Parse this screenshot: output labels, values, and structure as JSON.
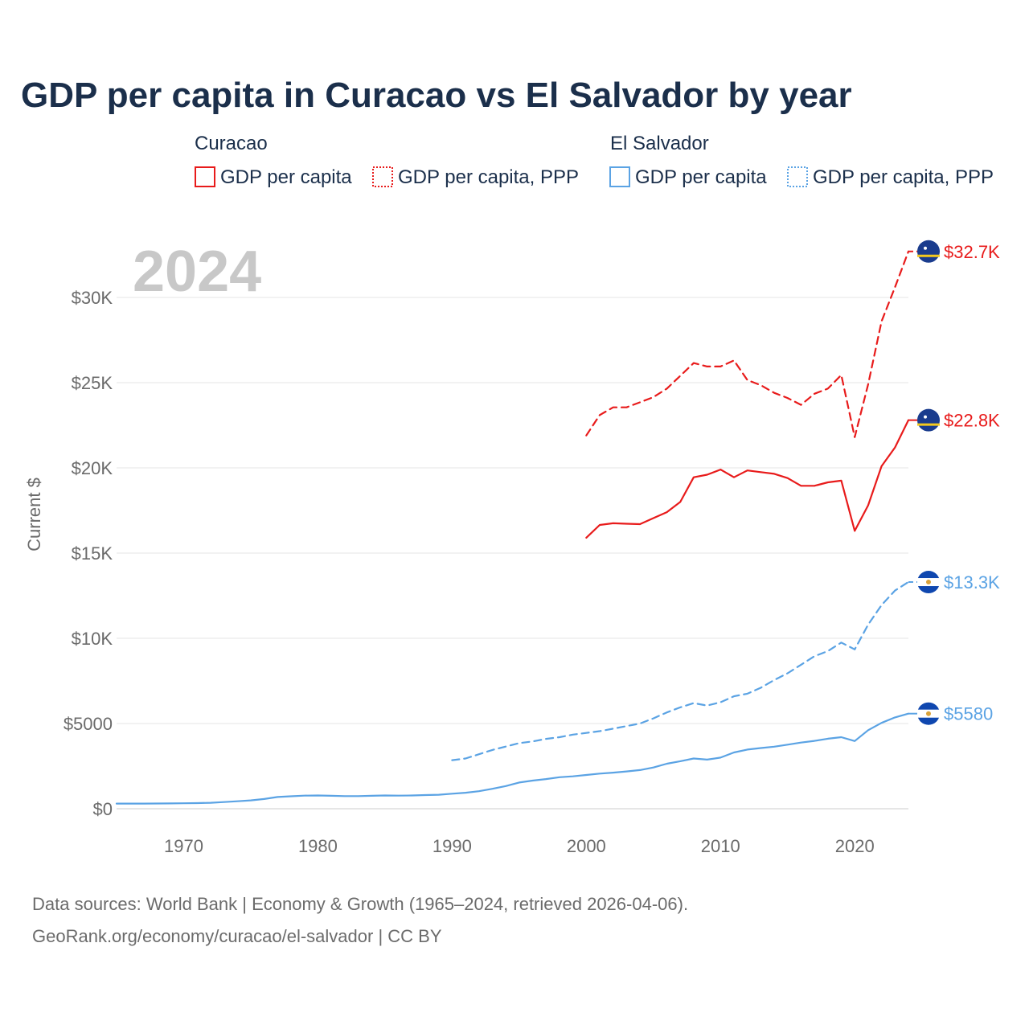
{
  "title": "GDP per capita in Curacao vs El Salvador by year",
  "legend": {
    "groups": [
      {
        "name": "Curacao",
        "color": "#e81b1b",
        "items": [
          {
            "label": "GDP per capita",
            "style": "solid"
          },
          {
            "label": "GDP per capita, PPP",
            "style": "dotted"
          }
        ]
      },
      {
        "name": "El Salvador",
        "color": "#5ba3e4",
        "items": [
          {
            "label": "GDP per capita",
            "style": "solid"
          },
          {
            "label": "GDP per capita, PPP",
            "style": "dotted"
          }
        ]
      }
    ]
  },
  "year_watermark": "2024",
  "source": {
    "line1": "Data sources: World Bank | Economy & Growth (1965–2024, retrieved 2026-04-06).",
    "line2": "GeoRank.org/economy/curacao/el-salvador | CC BY"
  },
  "chart_data": {
    "type": "line",
    "title": "GDP per capita in Curacao vs El Salvador by year",
    "xlabel": "",
    "ylabel": "Current $",
    "xlim": [
      1965,
      2024
    ],
    "ylim": [
      0,
      33000
    ],
    "x_ticks": [
      1970,
      1980,
      1990,
      2000,
      2010,
      2020
    ],
    "x_tick_labels": [
      "1970",
      "1980",
      "1990",
      "2000",
      "2010",
      "2020"
    ],
    "y_ticks": [
      0,
      5000,
      10000,
      15000,
      20000,
      25000,
      30000
    ],
    "y_tick_labels": [
      "$0",
      "$5000",
      "$10K",
      "$15K",
      "$20K",
      "$25K",
      "$30K"
    ],
    "grid": true,
    "series": [
      {
        "name": "Curacao GDP per capita, PPP",
        "country": "Curacao",
        "color": "#e81b1b",
        "dash": "dashed",
        "end_label": "$32.7K",
        "x": [
          2000,
          2001,
          2002,
          2003,
          2004,
          2005,
          2006,
          2007,
          2008,
          2009,
          2010,
          2011,
          2012,
          2013,
          2014,
          2015,
          2016,
          2017,
          2018,
          2019,
          2020,
          2021,
          2022,
          2023,
          2024
        ],
        "y": [
          21900,
          23100,
          23550,
          23550,
          23850,
          24150,
          24650,
          25400,
          26150,
          25950,
          25950,
          26300,
          25150,
          24850,
          24400,
          24100,
          23700,
          24350,
          24650,
          25450,
          21800,
          24900,
          28600,
          30600,
          32700
        ]
      },
      {
        "name": "Curacao GDP per capita",
        "country": "Curacao",
        "color": "#e81b1b",
        "dash": "solid",
        "end_label": "$22.8K",
        "x": [
          2000,
          2001,
          2002,
          2003,
          2004,
          2005,
          2006,
          2007,
          2008,
          2009,
          2010,
          2011,
          2012,
          2013,
          2014,
          2015,
          2016,
          2017,
          2018,
          2019,
          2020,
          2021,
          2022,
          2023,
          2024
        ],
        "y": [
          15900,
          16650,
          16750,
          16720,
          16700,
          17050,
          17400,
          18000,
          19450,
          19600,
          19900,
          19450,
          19850,
          19750,
          19650,
          19400,
          18950,
          18950,
          19150,
          19250,
          16300,
          17800,
          20100,
          21200,
          22800
        ]
      },
      {
        "name": "El Salvador GDP per capita, PPP",
        "country": "El Salvador",
        "color": "#5ba3e4",
        "dash": "dashed",
        "end_label": "$13.3K",
        "x": [
          1990,
          1991,
          1992,
          1993,
          1994,
          1995,
          1996,
          1997,
          1998,
          1999,
          2000,
          2001,
          2002,
          2003,
          2004,
          2005,
          2006,
          2007,
          2008,
          2009,
          2010,
          2011,
          2012,
          2013,
          2014,
          2015,
          2016,
          2017,
          2018,
          2019,
          2020,
          2021,
          2022,
          2023,
          2024
        ],
        "y": [
          2850,
          2950,
          3200,
          3450,
          3650,
          3850,
          3950,
          4100,
          4200,
          4350,
          4450,
          4550,
          4700,
          4850,
          5000,
          5300,
          5650,
          5950,
          6200,
          6050,
          6250,
          6600,
          6750,
          7100,
          7550,
          7950,
          8450,
          8950,
          9250,
          9750,
          9350,
          10800,
          11950,
          12800,
          13300
        ]
      },
      {
        "name": "El Salvador GDP per capita",
        "country": "El Salvador",
        "color": "#5ba3e4",
        "dash": "solid",
        "end_label": "$5580",
        "x": [
          1965,
          1966,
          1967,
          1968,
          1969,
          1970,
          1971,
          1972,
          1973,
          1974,
          1975,
          1976,
          1977,
          1978,
          1979,
          1980,
          1981,
          1982,
          1983,
          1984,
          1985,
          1986,
          1987,
          1988,
          1989,
          1990,
          1991,
          1992,
          1993,
          1994,
          1995,
          1996,
          1997,
          1998,
          1999,
          2000,
          2001,
          2002,
          2003,
          2004,
          2005,
          2006,
          2007,
          2008,
          2009,
          2010,
          2011,
          2012,
          2013,
          2014,
          2015,
          2016,
          2017,
          2018,
          2019,
          2020,
          2021,
          2022,
          2023,
          2024
        ],
        "y": [
          300,
          300,
          300,
          305,
          310,
          320,
          330,
          350,
          390,
          440,
          490,
          570,
          690,
          730,
          770,
          780,
          760,
          740,
          740,
          760,
          780,
          770,
          780,
          800,
          820,
          880,
          940,
          1030,
          1170,
          1330,
          1540,
          1650,
          1740,
          1850,
          1900,
          1980,
          2060,
          2120,
          2190,
          2270,
          2420,
          2640,
          2790,
          2950,
          2880,
          3000,
          3300,
          3470,
          3560,
          3640,
          3760,
          3880,
          3980,
          4110,
          4200,
          3970,
          4610,
          5040,
          5360,
          5580
        ]
      }
    ]
  }
}
